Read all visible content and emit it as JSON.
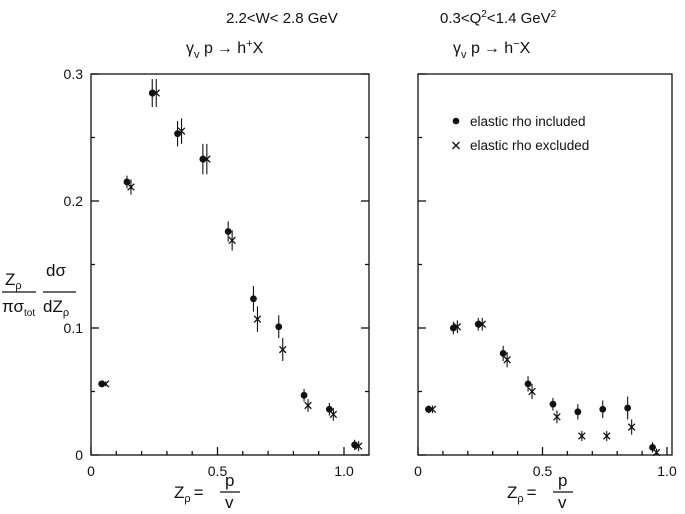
{
  "header": {
    "w_range": "2.2<W< 2.8 GeV",
    "q2_range": "0.3<Q",
    "q2_exp": "2",
    "q2_mid": "<1.4  GeV",
    "q2_exp2": "2"
  },
  "colors": {
    "ink": "#111111",
    "background": "#ffffff"
  },
  "chart_data": [
    {
      "type": "scatter",
      "panel": "left",
      "process": {
        "gamma": "γ",
        "sub": "v",
        "target": " p",
        "arrow": "→",
        "h": " h",
        "charge": "+",
        "x": "X"
      },
      "xlim": [
        0,
        1.1
      ],
      "ylim": [
        0,
        0.3
      ],
      "xticks": [
        0,
        0.5,
        1.0
      ],
      "xtick_labels": [
        "0",
        "0.5",
        "1.0"
      ],
      "yticks": [
        0,
        0.1,
        0.2,
        0.3
      ],
      "ytick_labels": [
        "0",
        "0.1",
        "0.2",
        "0.3"
      ],
      "series": [
        {
          "name": "elastic rho included",
          "marker": "dot",
          "x": [
            0.05,
            0.15,
            0.25,
            0.35,
            0.45,
            0.55,
            0.65,
            0.75,
            0.85,
            0.95,
            1.05
          ],
          "y": [
            0.056,
            0.215,
            0.285,
            0.253,
            0.233,
            0.176,
            0.123,
            0.101,
            0.047,
            0.036,
            0.008
          ],
          "err": [
            0.002,
            0.005,
            0.011,
            0.01,
            0.012,
            0.008,
            0.01,
            0.009,
            0.005,
            0.005,
            0.004
          ]
        },
        {
          "name": "elastic rho excluded",
          "marker": "cross",
          "x": [
            0.05,
            0.15,
            0.25,
            0.35,
            0.45,
            0.55,
            0.65,
            0.75,
            0.85,
            0.95,
            1.05
          ],
          "y": [
            0.056,
            0.211,
            0.285,
            0.255,
            0.233,
            0.169,
            0.107,
            0.083,
            0.039,
            0.032,
            0.007
          ],
          "err": [
            0.002,
            0.006,
            0.011,
            0.01,
            0.012,
            0.008,
            0.01,
            0.009,
            0.005,
            0.005,
            0.004
          ]
        }
      ]
    },
    {
      "type": "scatter",
      "panel": "right",
      "process": {
        "gamma": "γ",
        "sub": "v",
        "target": " p",
        "arrow": "→",
        "h": " h",
        "charge": "−",
        "x": "X"
      },
      "xlim": [
        0,
        1.0
      ],
      "ylim": [
        0,
        0.3
      ],
      "xticks": [
        0,
        0.5,
        1.0
      ],
      "xtick_labels": [
        "0",
        "0.5",
        "1.0"
      ],
      "yticks": [
        0,
        0.1,
        0.2,
        0.3
      ],
      "ytick_labels": [],
      "legend": {
        "position": "top-right",
        "entries": [
          {
            "marker": "dot",
            "label": "elastic rho included"
          },
          {
            "marker": "cross",
            "label": "elastic rho excluded"
          }
        ]
      },
      "series": [
        {
          "name": "elastic rho included",
          "marker": "dot",
          "x": [
            0.05,
            0.15,
            0.25,
            0.35,
            0.45,
            0.55,
            0.65,
            0.75,
            0.85,
            0.95
          ],
          "y": [
            0.036,
            0.1,
            0.103,
            0.08,
            0.056,
            0.04,
            0.034,
            0.036,
            0.037,
            0.006
          ],
          "err": [
            0.003,
            0.005,
            0.005,
            0.006,
            0.006,
            0.005,
            0.006,
            0.007,
            0.009,
            0.004
          ]
        },
        {
          "name": "elastic rho excluded",
          "marker": "cross",
          "x": [
            0.05,
            0.15,
            0.25,
            0.35,
            0.45,
            0.55,
            0.65,
            0.75,
            0.85,
            0.95
          ],
          "y": [
            0.036,
            0.101,
            0.103,
            0.075,
            0.05,
            0.03,
            0.015,
            0.015,
            0.022,
            0.002
          ],
          "err": [
            0.003,
            0.005,
            0.005,
            0.006,
            0.006,
            0.005,
            0.004,
            0.004,
            0.006,
            0.003
          ]
        }
      ]
    }
  ],
  "y_axis_label": {
    "z": "Z",
    "zsub": "ρ",
    "pi": "πσ",
    "pisub": "tot",
    "dsig": "dσ",
    "dz": "dZ",
    "dzsub": "ρ"
  },
  "x_axis_label": {
    "z": "Z",
    "zsub": "ρ",
    "eq": "=",
    "num": "p",
    "den": "v"
  }
}
